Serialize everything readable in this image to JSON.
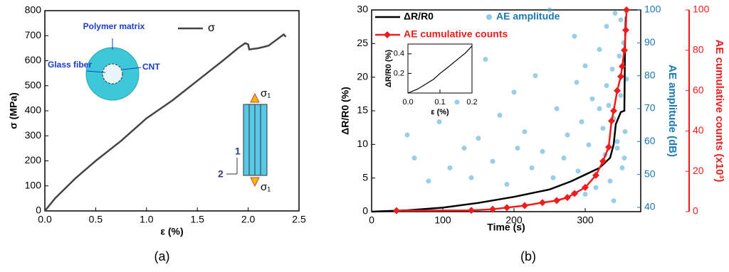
{
  "chart_data": [
    {
      "type": "line",
      "panel_label": "(a)",
      "xlabel": "ε (%)",
      "ylabel": "σ (MPa)",
      "xlim": [
        0,
        2.5
      ],
      "ylim": [
        0,
        800
      ],
      "xticks": [
        {
          "value": 0,
          "label": "0.0"
        },
        0.5,
        {
          "value": 1,
          "label": "1.0"
        },
        1.5,
        {
          "value": 2,
          "label": "2.0"
        },
        2.5
      ],
      "yticks": [
        0,
        100,
        200,
        300,
        400,
        500,
        600,
        700,
        800
      ],
      "series": [
        {
          "name": "σ",
          "color": "#444444",
          "x": [
            0,
            0.1,
            0.3,
            0.5,
            0.75,
            1.0,
            1.25,
            1.5,
            1.75,
            1.9,
            1.97,
            2.0,
            2.01,
            2.1,
            2.2,
            2.3,
            2.35,
            2.37
          ],
          "values": [
            0,
            50,
            130,
            200,
            280,
            370,
            440,
            520,
            600,
            650,
            670,
            665,
            645,
            650,
            660,
            690,
            705,
            695
          ]
        }
      ],
      "annotations": {
        "matrix": "Polymer matrix",
        "fiber": "Glass fiber",
        "cnt": "CNT",
        "sigma_top": "σ₁",
        "sigma_bottom": "σ₁",
        "dir1": "1",
        "dir2": "2"
      }
    },
    {
      "type": "combo",
      "panel_label": "(b)",
      "xlabel": "Time (s)",
      "ylabel": "ΔR/R0 (%)",
      "y2label": "AE amplitude (dB)",
      "y3label": "AE cumulative counts (x10³)",
      "xlim": [
        0,
        378
      ],
      "ylim": [
        0,
        30
      ],
      "y2lim": [
        38.7,
        100
      ],
      "y3lim": [
        0,
        100
      ],
      "xticks": [
        0,
        100,
        200,
        300
      ],
      "yticks": [
        0,
        5,
        10,
        15,
        20,
        25,
        30
      ],
      "y2ticks": [
        40,
        50,
        60,
        70,
        80,
        90,
        100
      ],
      "y3ticks": [
        0,
        20,
        40,
        60,
        80,
        100
      ],
      "series": [
        {
          "name": "ΔR/R0",
          "color": "#000000",
          "axis": "y",
          "x": [
            0,
            50,
            100,
            150,
            200,
            250,
            280,
            300,
            320,
            335,
            340,
            343,
            350,
            355,
            356,
            357
          ],
          "values": [
            0,
            0.2,
            0.6,
            1.3,
            2.2,
            3.3,
            4.5,
            5.5,
            6.5,
            8,
            10,
            13,
            14.8,
            15,
            25,
            29
          ]
        },
        {
          "name": "AE amplitude",
          "color": "#45a6d8",
          "axis": "y2",
          "x": [
            50,
            60,
            80,
            95,
            110,
            120,
            130,
            140,
            150,
            160,
            170,
            180,
            190,
            200,
            205,
            215,
            225,
            230,
            240,
            250,
            255,
            260,
            270,
            275,
            285,
            288,
            290,
            295,
            300,
            305,
            310,
            315,
            320,
            325,
            328,
            330,
            333,
            335,
            338,
            340,
            342,
            345,
            348,
            350,
            352,
            354,
            356,
            358,
            300,
            340,
            345,
            350,
            330,
            355,
            320
          ],
          "values": [
            62,
            55,
            48,
            66,
            52,
            72,
            58,
            49,
            61,
            85,
            54,
            68,
            47,
            75,
            58,
            63,
            52,
            80,
            57,
            100,
            49,
            70,
            55,
            62,
            92,
            78,
            51,
            66,
            83,
            59,
            73,
            46,
            88,
            64,
            56,
            95,
            71,
            48,
            82,
            67,
            99,
            58,
            86,
            74,
            52,
            90,
            63,
            79,
            44,
            42,
            60,
            97,
            77,
            55,
            70
          ]
        },
        {
          "name": "AE cumulative counts",
          "color": "#ee1c1c",
          "axis": "y3",
          "x": [
            35,
            140,
            170,
            190,
            215,
            240,
            260,
            275,
            285,
            300,
            315,
            325,
            333,
            337,
            340,
            345,
            350,
            352,
            355,
            357,
            358
          ],
          "values": [
            0.5,
            0.6,
            1.2,
            2,
            3,
            4.5,
            5.5,
            7,
            9,
            12,
            18,
            25,
            32,
            45,
            50,
            60,
            67,
            72,
            80,
            90,
            100
          ]
        }
      ],
      "inset": {
        "xlabel": "ε (%)",
        "ylabel": "ΔR/R0 (%)",
        "xlim": [
          0,
          0.2
        ],
        "ylim": [
          0,
          0.5
        ],
        "xticks": [
          {
            "value": 0,
            "label": "0.0"
          },
          0.1,
          0.2
        ],
        "yticks": [
          0.2,
          0.4
        ],
        "x": [
          0,
          0.03,
          0.05,
          0.08,
          0.1,
          0.12,
          0.15,
          0.18,
          0.2
        ],
        "values": [
          0,
          0.04,
          0.08,
          0.14,
          0.2,
          0.25,
          0.33,
          0.41,
          0.48
        ]
      }
    }
  ]
}
